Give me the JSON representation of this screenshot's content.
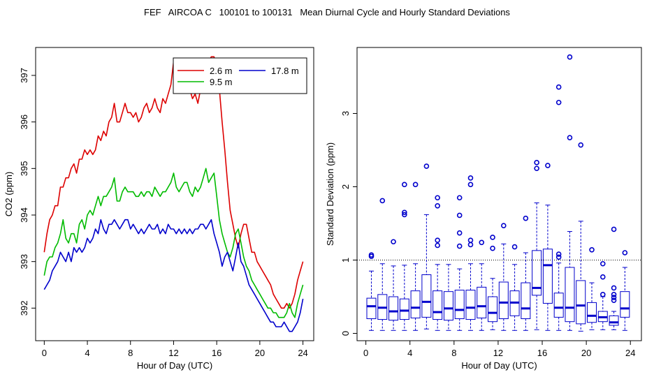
{
  "page": {
    "title": "FEF   AIRCOA C   100101 to 100131   Mean Diurnal Cycle and Hourly Standard Deviations"
  },
  "chart_data": [
    {
      "type": "line",
      "xlabel": "Hour of Day (UTC)",
      "ylabel": "CO2 (ppm)",
      "xlim": [
        -0.8,
        25
      ],
      "ylim": [
        391.3,
        397.6
      ],
      "xticks": [
        0,
        4,
        8,
        12,
        16,
        20,
        24
      ],
      "yticks": [
        392,
        393,
        394,
        395,
        396,
        397
      ],
      "legend_position": "top-right",
      "x_step": 0.25,
      "series": [
        {
          "name": "2.6 m",
          "color": "#dd0000",
          "values": [
            393.2,
            393.6,
            393.9,
            394,
            394.2,
            394.2,
            394.6,
            394.6,
            394.8,
            394.8,
            395,
            395.1,
            394.9,
            395.2,
            395.2,
            395.4,
            395.3,
            395.4,
            395.3,
            395.4,
            395.7,
            395.6,
            395.8,
            395.7,
            396,
            396.1,
            396.4,
            396,
            396,
            396.2,
            396.4,
            396.2,
            396.2,
            396.1,
            396.2,
            396,
            396.1,
            396.3,
            396.4,
            396.2,
            396.3,
            396.5,
            396.3,
            396.2,
            396.5,
            396.4,
            396.6,
            396.8,
            397.3,
            396.8,
            396.7,
            396.8,
            396.7,
            396.8,
            396.7,
            396.5,
            396.6,
            396.4,
            396.7,
            396.9,
            397.2,
            397.3,
            397.4,
            397.4,
            397.2,
            396.7,
            396,
            395.4,
            394.7,
            394.1,
            393.8,
            393.5,
            393.3,
            393.6,
            393.8,
            393.8,
            393.5,
            393.2,
            393.2,
            393,
            392.9,
            392.8,
            392.7,
            392.6,
            392.5,
            392.3,
            392.2,
            392.1,
            392,
            392,
            392.1,
            392,
            392.1,
            392.3,
            392.6,
            392.8,
            393
          ]
        },
        {
          "name": "9.5 m",
          "color": "#00bb00",
          "values": [
            392.7,
            393,
            393.1,
            393.1,
            393.3,
            393.4,
            393.6,
            393.9,
            393.5,
            393.4,
            393.6,
            393.6,
            393.4,
            393.8,
            393.9,
            393.7,
            394,
            394.1,
            394,
            394.2,
            394.4,
            394.2,
            394.4,
            394.4,
            394.5,
            394.6,
            394.8,
            394.3,
            394.3,
            394.5,
            394.6,
            394.5,
            394.5,
            394.5,
            394.4,
            394.4,
            394.5,
            394.4,
            394.5,
            394.5,
            394.4,
            394.6,
            394.5,
            394.4,
            394.5,
            394.5,
            394.6,
            394.7,
            394.9,
            394.6,
            394.5,
            394.6,
            394.7,
            394.7,
            394.5,
            394.4,
            394.6,
            394.5,
            394.6,
            394.8,
            395,
            394.7,
            394.8,
            394.9,
            394.4,
            393.9,
            393.6,
            393.4,
            393.2,
            393.1,
            393.3,
            393.6,
            393.7,
            393.4,
            393.1,
            392.9,
            392.8,
            392.6,
            392.5,
            392.4,
            392.3,
            392.2,
            392.1,
            392,
            392,
            391.9,
            391.9,
            391.8,
            391.8,
            391.8,
            391.9,
            392.1,
            391.9,
            391.8,
            392.1,
            392.3,
            392.5
          ]
        },
        {
          "name": "17.8 m",
          "color": "#0000cc",
          "values": [
            392.4,
            392.5,
            392.6,
            392.8,
            392.9,
            393,
            393.2,
            393.1,
            393,
            393.2,
            393,
            393.3,
            393.2,
            393.3,
            393.2,
            393.3,
            393.5,
            393.4,
            393.5,
            393.7,
            393.6,
            393.9,
            393.7,
            393.6,
            393.8,
            393.8,
            393.9,
            393.8,
            393.7,
            393.8,
            393.9,
            393.9,
            393.7,
            393.8,
            393.7,
            393.6,
            393.7,
            393.6,
            393.7,
            393.8,
            393.7,
            393.7,
            393.8,
            393.6,
            393.7,
            393.6,
            393.8,
            393.7,
            393.7,
            393.6,
            393.7,
            393.6,
            393.7,
            393.6,
            393.7,
            393.6,
            393.7,
            393.7,
            393.8,
            393.8,
            393.7,
            393.8,
            393.9,
            393.6,
            393.4,
            393.2,
            392.9,
            393.1,
            393.2,
            393,
            392.8,
            393.1,
            393.4,
            393,
            392.9,
            392.7,
            392.5,
            392.4,
            392.3,
            392.2,
            392.1,
            392,
            391.9,
            391.8,
            391.7,
            391.7,
            391.6,
            391.6,
            391.6,
            391.7,
            391.6,
            391.5,
            391.5,
            391.6,
            391.7,
            391.9,
            392.2
          ]
        }
      ]
    },
    {
      "type": "box",
      "xlabel": "Hour of Day (UTC)",
      "ylabel": "Standard Deviation (ppm)",
      "xlim": [
        -0.8,
        25
      ],
      "ylim": [
        -0.1,
        3.9
      ],
      "xticks": [
        0,
        4,
        8,
        12,
        16,
        20,
        24
      ],
      "yticks": [
        0,
        1,
        2,
        3
      ],
      "reference_line": 1,
      "color": "#0000cc",
      "boxes": [
        {
          "hour": 0.5,
          "min": 0.04,
          "q1": 0.2,
          "median": 0.37,
          "q3": 0.48,
          "max": 0.85,
          "outliers": [
            1.05,
            1.07
          ]
        },
        {
          "hour": 1.5,
          "min": 0.04,
          "q1": 0.19,
          "median": 0.35,
          "q3": 0.53,
          "max": 0.95,
          "outliers": [
            1.81
          ]
        },
        {
          "hour": 2.5,
          "min": 0.04,
          "q1": 0.18,
          "median": 0.3,
          "q3": 0.5,
          "max": 0.92,
          "outliers": [
            1.25
          ]
        },
        {
          "hour": 3.5,
          "min": 0.04,
          "q1": 0.19,
          "median": 0.31,
          "q3": 0.47,
          "max": 0.93,
          "outliers": [
            1.62,
            1.65,
            2.03
          ]
        },
        {
          "hour": 4.5,
          "min": 0.04,
          "q1": 0.21,
          "median": 0.35,
          "q3": 0.58,
          "max": 0.95,
          "outliers": [
            2.03
          ]
        },
        {
          "hour": 5.5,
          "min": 0.06,
          "q1": 0.22,
          "median": 0.43,
          "q3": 0.8,
          "max": 1.62,
          "outliers": [
            2.28
          ]
        },
        {
          "hour": 6.5,
          "min": 0.04,
          "q1": 0.19,
          "median": 0.29,
          "q3": 0.58,
          "max": 0.94,
          "outliers": [
            1.2,
            1.27,
            1.74,
            1.85
          ]
        },
        {
          "hour": 7.5,
          "min": 0.04,
          "q1": 0.18,
          "median": 0.34,
          "q3": 0.57,
          "max": 0.94,
          "outliers": []
        },
        {
          "hour": 8.5,
          "min": 0.04,
          "q1": 0.2,
          "median": 0.32,
          "q3": 0.59,
          "max": 0.88,
          "outliers": [
            1.19,
            1.37,
            1.61,
            1.85
          ]
        },
        {
          "hour": 9.5,
          "min": 0.04,
          "q1": 0.19,
          "median": 0.35,
          "q3": 0.59,
          "max": 0.95,
          "outliers": [
            1.21,
            1.27,
            2.03,
            2.12
          ]
        },
        {
          "hour": 10.5,
          "min": 0.04,
          "q1": 0.21,
          "median": 0.37,
          "q3": 0.63,
          "max": 0.95,
          "outliers": [
            1.24
          ]
        },
        {
          "hour": 11.5,
          "min": 0.05,
          "q1": 0.16,
          "median": 0.28,
          "q3": 0.5,
          "max": 0.75,
          "outliers": [
            1.16,
            1.31
          ]
        },
        {
          "hour": 12.5,
          "min": 0.04,
          "q1": 0.2,
          "median": 0.42,
          "q3": 0.7,
          "max": 1.22,
          "outliers": [
            1.47
          ]
        },
        {
          "hour": 13.5,
          "min": 0.04,
          "q1": 0.24,
          "median": 0.42,
          "q3": 0.58,
          "max": 0.94,
          "outliers": [
            1.18
          ]
        },
        {
          "hour": 14.5,
          "min": 0.04,
          "q1": 0.2,
          "median": 0.34,
          "q3": 0.69,
          "max": 1.1,
          "outliers": [
            1.57
          ]
        },
        {
          "hour": 15.5,
          "min": 0.05,
          "q1": 0.52,
          "median": 0.62,
          "q3": 1.13,
          "max": 1.78,
          "outliers": [
            2.25,
            2.33
          ]
        },
        {
          "hour": 16.5,
          "min": 0.04,
          "q1": 0.41,
          "median": 0.93,
          "q3": 1.15,
          "max": 1.75,
          "outliers": [
            2.29
          ]
        },
        {
          "hour": 17.5,
          "min": 0.04,
          "q1": 0.22,
          "median": 0.35,
          "q3": 0.55,
          "max": 0.96,
          "outliers": [
            1.04,
            1.08,
            3.15,
            3.36
          ]
        },
        {
          "hour": 18.5,
          "min": 0.04,
          "q1": 0.16,
          "median": 0.35,
          "q3": 0.9,
          "max": 1.39,
          "outliers": [
            2.67,
            3.77
          ]
        },
        {
          "hour": 19.5,
          "min": 0.03,
          "q1": 0.13,
          "median": 0.38,
          "q3": 0.72,
          "max": 1.53,
          "outliers": [
            2.57
          ]
        },
        {
          "hour": 20.5,
          "min": 0.05,
          "q1": 0.15,
          "median": 0.24,
          "q3": 0.42,
          "max": 0.69,
          "outliers": [
            1.14
          ]
        },
        {
          "hour": 21.5,
          "min": 0.05,
          "q1": 0.16,
          "median": 0.22,
          "q3": 0.3,
          "max": 0.5,
          "outliers": [
            0.53,
            0.77,
            0.95
          ]
        },
        {
          "hour": 22.5,
          "min": 0.05,
          "q1": 0.11,
          "median": 0.15,
          "q3": 0.24,
          "max": 0.3,
          "outliers": [
            0.45,
            0.49,
            0.53,
            0.62,
            1.42
          ]
        },
        {
          "hour": 23.5,
          "min": 0.04,
          "q1": 0.22,
          "median": 0.34,
          "q3": 0.57,
          "max": 0.9,
          "outliers": [
            1.1
          ]
        }
      ]
    }
  ]
}
